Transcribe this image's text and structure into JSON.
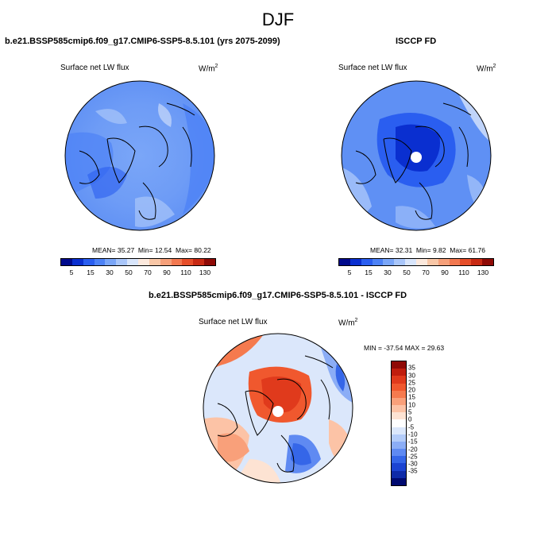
{
  "page": {
    "season": "DJF",
    "units_base": "W/m",
    "units_exp": "2"
  },
  "panel_model": {
    "title": "b.e21.BSSP585cmip6.f09_g17.CMIP6-SSP5-8.5.101 (yrs 2075-2099)",
    "variable": "Surface net LW flux",
    "mean_label": "MEAN=",
    "mean": "35.27",
    "min_label": "Min=",
    "min": "12.54",
    "max_label": "Max=",
    "max": "80.22"
  },
  "panel_obs": {
    "title": "ISCCP FD",
    "variable": "Surface net LW flux",
    "mean_label": "MEAN=",
    "mean": "32.31",
    "min_label": "Min=",
    "min": "9.82",
    "max_label": "Max=",
    "max": "61.76"
  },
  "panel_diff": {
    "title": "b.e21.BSSP585cmip6.f09_g17.CMIP6-SSP5-8.5.101 - ISCCP FD",
    "variable": "Surface net LW flux",
    "minmax_text": "MIN = -37.54 MAX =  29.63"
  },
  "colorbar_abs": {
    "ticks": [
      "5",
      "15",
      "30",
      "50",
      "70",
      "90",
      "110",
      "130"
    ],
    "colors": [
      "#000a8c",
      "#0a2fd0",
      "#2a5ef0",
      "#4d82f6",
      "#7aa6f8",
      "#a9c6fa",
      "#d8e5fb",
      "#fce9dd",
      "#f9c7a7",
      "#f6a07a",
      "#f27850",
      "#e64e2a",
      "#c82a14",
      "#8f0a06"
    ]
  },
  "colorbar_diff": {
    "ticks": [
      "35",
      "30",
      "25",
      "20",
      "15",
      "10",
      "5",
      "0",
      "-5",
      "-10",
      "-15",
      "-20",
      "-25",
      "-30",
      "-35"
    ],
    "colors": [
      "#8f0a06",
      "#c01e0e",
      "#e03a1c",
      "#f0582e",
      "#f57a4e",
      "#f9a07a",
      "#fcc3a6",
      "#fde3d3",
      "#ffffff",
      "#dbe7fb",
      "#b3ccf9",
      "#8badf6",
      "#5f8af2",
      "#3566e8",
      "#1c44d2",
      "#0e2aa8",
      "#000a70"
    ]
  }
}
